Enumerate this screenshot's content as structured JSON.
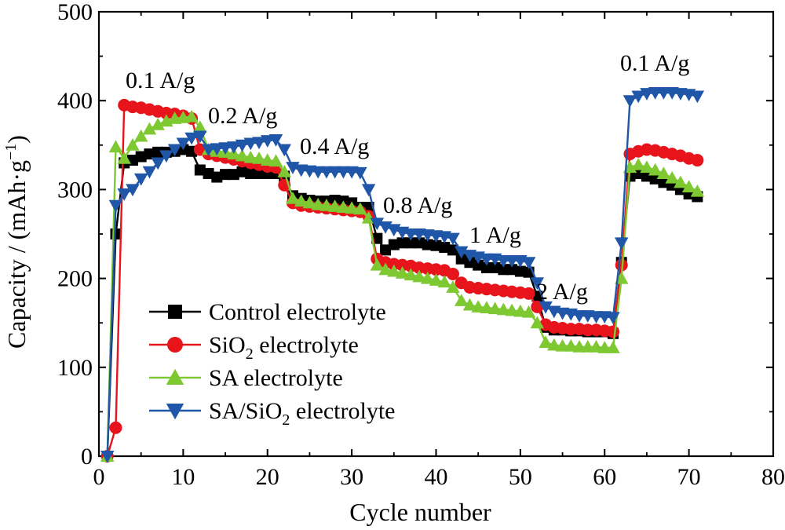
{
  "chart_data": {
    "type": "line",
    "xlabel": "Cycle number",
    "ylabel_parts": {
      "main": "Capacity / (mAh·g",
      "sup": "−1",
      "close": ")"
    },
    "xlim": [
      0,
      80
    ],
    "ylim": [
      0,
      500
    ],
    "xticks": [
      "0",
      "10",
      "20",
      "30",
      "40",
      "50",
      "60",
      "70",
      "80"
    ],
    "yticks": [
      "0",
      "100",
      "200",
      "300",
      "400",
      "500"
    ],
    "grid": false,
    "legend_position": "bottom-left",
    "annotations": [
      "0.1 A/g",
      "0.2 A/g",
      "0.4 A/g",
      "0.8 A/g",
      "1 A/g",
      "2 A/g",
      "0.1 A/g"
    ],
    "series": [
      {
        "name_parts": {
          "pre": "Control electrolyte",
          "sub": "",
          "post": ""
        },
        "color": "#000000",
        "marker": "square",
        "x": [
          1,
          2,
          3,
          4,
          5,
          6,
          7,
          8,
          9,
          10,
          11,
          12,
          13,
          14,
          15,
          16,
          17,
          18,
          19,
          20,
          21,
          22,
          23,
          24,
          25,
          26,
          27,
          28,
          29,
          30,
          31,
          32,
          33,
          34,
          35,
          36,
          37,
          38,
          39,
          40,
          41,
          42,
          43,
          44,
          45,
          46,
          47,
          48,
          49,
          50,
          51,
          52,
          53,
          54,
          55,
          56,
          57,
          58,
          59,
          60,
          61,
          62,
          63,
          64,
          65,
          66,
          67,
          68,
          69,
          70,
          71
        ],
        "y": [
          0,
          250,
          330,
          333,
          337,
          340,
          342,
          342,
          343,
          345,
          343,
          322,
          318,
          314,
          317,
          317,
          320,
          318,
          318,
          318,
          318,
          315,
          293,
          290,
          288,
          287,
          287,
          288,
          287,
          285,
          280,
          280,
          245,
          232,
          238,
          240,
          240,
          240,
          238,
          237,
          235,
          232,
          222,
          218,
          215,
          212,
          212,
          210,
          210,
          208,
          207,
          180,
          145,
          142,
          142,
          141,
          141,
          140,
          140,
          140,
          138,
          218,
          315,
          318,
          315,
          312,
          308,
          305,
          300,
          295,
          292
        ]
      },
      {
        "name_parts": {
          "pre": "SiO",
          "sub": "2",
          "post": " electrolyte"
        },
        "color": "#e8141b",
        "marker": "circle",
        "x": [
          1,
          2,
          3,
          4,
          5,
          6,
          7,
          8,
          9,
          10,
          11,
          12,
          13,
          14,
          15,
          16,
          17,
          18,
          19,
          20,
          21,
          22,
          23,
          24,
          25,
          26,
          27,
          28,
          29,
          30,
          31,
          32,
          33,
          34,
          35,
          36,
          37,
          38,
          39,
          40,
          41,
          42,
          43,
          44,
          45,
          46,
          47,
          48,
          49,
          50,
          51,
          52,
          53,
          54,
          55,
          56,
          57,
          58,
          59,
          60,
          61,
          62,
          63,
          64,
          65,
          66,
          67,
          68,
          69,
          70,
          71
        ],
        "y": [
          0,
          32,
          395,
          393,
          392,
          390,
          388,
          386,
          385,
          383,
          380,
          345,
          340,
          338,
          336,
          334,
          332,
          330,
          328,
          326,
          325,
          305,
          285,
          282,
          281,
          280,
          279,
          278,
          277,
          276,
          275,
          270,
          222,
          218,
          216,
          215,
          214,
          212,
          211,
          210,
          209,
          205,
          195,
          190,
          189,
          188,
          187,
          186,
          185,
          184,
          183,
          168,
          148,
          145,
          144,
          143,
          143,
          142,
          142,
          141,
          140,
          215,
          340,
          343,
          345,
          344,
          342,
          340,
          338,
          335,
          333
        ]
      },
      {
        "name_parts": {
          "pre": "SA electrolyte",
          "sub": "",
          "post": ""
        },
        "color": "#7ec832",
        "marker": "triangle-up",
        "x": [
          1,
          2,
          3,
          4,
          5,
          6,
          7,
          8,
          9,
          10,
          11,
          12,
          13,
          14,
          15,
          16,
          17,
          18,
          19,
          20,
          21,
          22,
          23,
          24,
          25,
          26,
          27,
          28,
          29,
          30,
          31,
          32,
          33,
          34,
          35,
          36,
          37,
          38,
          39,
          40,
          41,
          42,
          43,
          44,
          45,
          46,
          47,
          48,
          49,
          50,
          51,
          52,
          53,
          54,
          55,
          56,
          57,
          58,
          59,
          60,
          61,
          62,
          63,
          64,
          65,
          66,
          67,
          68,
          69,
          70,
          71
        ],
        "y": [
          0,
          348,
          335,
          350,
          360,
          368,
          373,
          377,
          380,
          381,
          382,
          370,
          345,
          343,
          342,
          340,
          338,
          336,
          335,
          333,
          332,
          320,
          290,
          287,
          285,
          283,
          282,
          281,
          280,
          279,
          278,
          268,
          215,
          210,
          208,
          206,
          204,
          202,
          200,
          198,
          196,
          190,
          175,
          170,
          168,
          167,
          166,
          165,
          164,
          163,
          162,
          150,
          128,
          125,
          124,
          124,
          123,
          123,
          123,
          122,
          122,
          200,
          325,
          328,
          325,
          322,
          318,
          313,
          308,
          303,
          298
        ]
      },
      {
        "name_parts": {
          "pre": "SA/SiO",
          "sub": "2",
          "post": " electrolyte"
        },
        "color": "#1f56a8",
        "marker": "triangle-down",
        "x": [
          1,
          2,
          3,
          4,
          5,
          6,
          7,
          8,
          9,
          10,
          11,
          12,
          13,
          14,
          15,
          16,
          17,
          18,
          19,
          20,
          21,
          22,
          23,
          24,
          25,
          26,
          27,
          28,
          29,
          30,
          31,
          32,
          33,
          34,
          35,
          36,
          37,
          38,
          39,
          40,
          41,
          42,
          43,
          44,
          45,
          46,
          47,
          48,
          49,
          50,
          51,
          52,
          53,
          54,
          55,
          56,
          57,
          58,
          59,
          60,
          61,
          62,
          63,
          64,
          65,
          66,
          67,
          68,
          69,
          70,
          71
        ],
        "y": [
          0,
          282,
          295,
          300,
          312,
          320,
          330,
          338,
          345,
          352,
          358,
          360,
          345,
          346,
          347,
          348,
          350,
          352,
          353,
          355,
          356,
          345,
          325,
          322,
          321,
          320,
          320,
          320,
          320,
          320,
          319,
          300,
          262,
          258,
          255,
          252,
          250,
          250,
          249,
          248,
          247,
          245,
          230,
          226,
          224,
          222,
          222,
          220,
          220,
          220,
          218,
          195,
          168,
          163,
          161,
          160,
          158,
          158,
          157,
          157,
          156,
          240,
          400,
          405,
          408,
          409,
          409,
          409,
          408,
          407,
          405
        ]
      }
    ]
  }
}
